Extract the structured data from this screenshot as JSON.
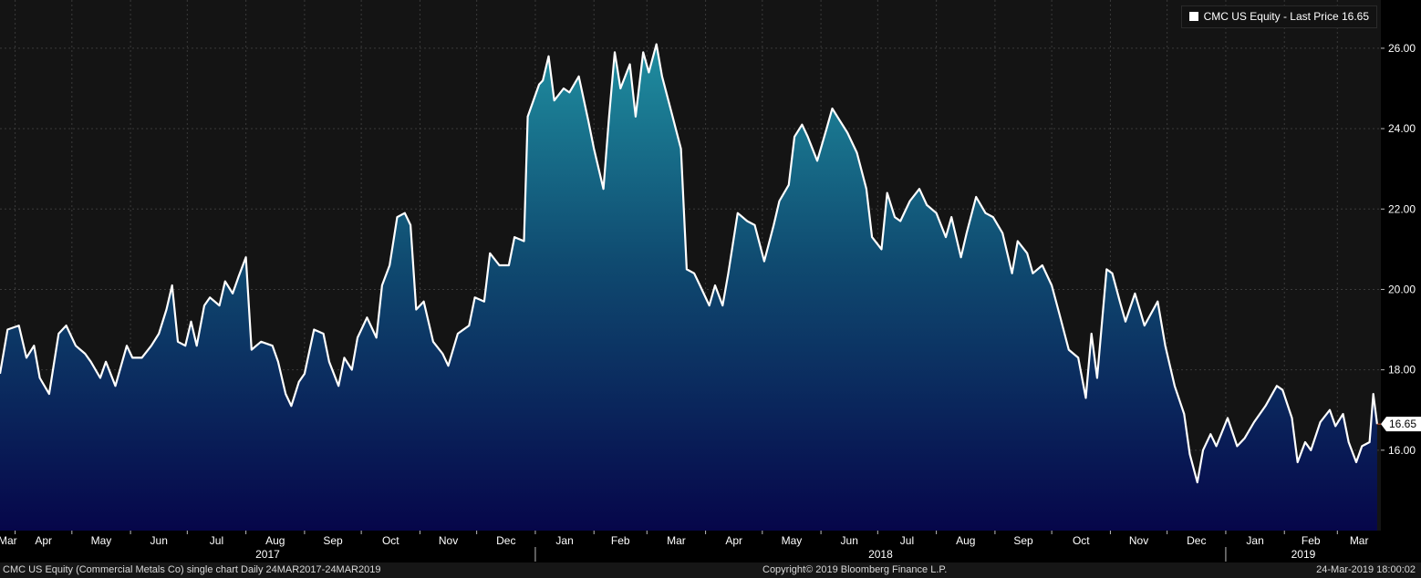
{
  "chart_data": {
    "type": "area",
    "ticker": "CMC US Equity",
    "legend_label": "CMC US Equity - Last Price 16.65",
    "last_price": 16.65,
    "last_price_label": "16.65",
    "y_ticks": [
      "16.00",
      "18.00",
      "20.00",
      "22.00",
      "24.00",
      "26.00"
    ],
    "ylim": [
      14.0,
      27.2
    ],
    "grid": true,
    "legend_position": "top-right",
    "x_range": [
      "2017-03-24",
      "2019-03-24"
    ],
    "month_labels": [
      "Mar",
      "Apr",
      "May",
      "Jun",
      "Jul",
      "Aug",
      "Sep",
      "Oct",
      "Nov",
      "Dec",
      "Jan",
      "Feb",
      "Mar",
      "Apr",
      "May",
      "Jun",
      "Jul",
      "Aug",
      "Sep",
      "Oct",
      "Nov",
      "Dec",
      "Jan",
      "Feb",
      "Mar"
    ],
    "year_labels": [
      "2017",
      "2018",
      "2019"
    ],
    "series": [
      {
        "values": [
          [
            "2017-03-24",
            17.9
          ],
          [
            "2017-03-28",
            19.0
          ],
          [
            "2017-04-03",
            19.1
          ],
          [
            "2017-04-07",
            18.3
          ],
          [
            "2017-04-11",
            18.6
          ],
          [
            "2017-04-14",
            17.8
          ],
          [
            "2017-04-19",
            17.4
          ],
          [
            "2017-04-24",
            18.9
          ],
          [
            "2017-04-28",
            19.1
          ],
          [
            "2017-05-03",
            18.6
          ],
          [
            "2017-05-08",
            18.4
          ],
          [
            "2017-05-11",
            18.2
          ],
          [
            "2017-05-16",
            17.8
          ],
          [
            "2017-05-19",
            18.2
          ],
          [
            "2017-05-24",
            17.6
          ],
          [
            "2017-05-30",
            18.6
          ],
          [
            "2017-06-02",
            18.3
          ],
          [
            "2017-06-07",
            18.3
          ],
          [
            "2017-06-12",
            18.6
          ],
          [
            "2017-06-16",
            18.9
          ],
          [
            "2017-06-20",
            19.5
          ],
          [
            "2017-06-23",
            20.1
          ],
          [
            "2017-06-26",
            18.7
          ],
          [
            "2017-06-30",
            18.6
          ],
          [
            "2017-07-03",
            19.2
          ],
          [
            "2017-07-06",
            18.6
          ],
          [
            "2017-07-10",
            19.6
          ],
          [
            "2017-07-13",
            19.8
          ],
          [
            "2017-07-18",
            19.6
          ],
          [
            "2017-07-21",
            20.2
          ],
          [
            "2017-07-25",
            19.9
          ],
          [
            "2017-07-28",
            20.3
          ],
          [
            "2017-08-01",
            20.8
          ],
          [
            "2017-08-04",
            18.5
          ],
          [
            "2017-08-09",
            18.7
          ],
          [
            "2017-08-15",
            18.6
          ],
          [
            "2017-08-18",
            18.2
          ],
          [
            "2017-08-22",
            17.4
          ],
          [
            "2017-08-25",
            17.1
          ],
          [
            "2017-08-29",
            17.7
          ],
          [
            "2017-09-01",
            17.9
          ],
          [
            "2017-09-06",
            19.0
          ],
          [
            "2017-09-11",
            18.9
          ],
          [
            "2017-09-14",
            18.2
          ],
          [
            "2017-09-19",
            17.6
          ],
          [
            "2017-09-22",
            18.3
          ],
          [
            "2017-09-26",
            18.0
          ],
          [
            "2017-09-29",
            18.8
          ],
          [
            "2017-10-04",
            19.3
          ],
          [
            "2017-10-09",
            18.8
          ],
          [
            "2017-10-12",
            20.1
          ],
          [
            "2017-10-16",
            20.6
          ],
          [
            "2017-10-20",
            21.8
          ],
          [
            "2017-10-24",
            21.9
          ],
          [
            "2017-10-27",
            21.6
          ],
          [
            "2017-10-30",
            19.5
          ],
          [
            "2017-11-03",
            19.7
          ],
          [
            "2017-11-08",
            18.7
          ],
          [
            "2017-11-13",
            18.4
          ],
          [
            "2017-11-16",
            18.1
          ],
          [
            "2017-11-21",
            18.9
          ],
          [
            "2017-11-27",
            19.1
          ],
          [
            "2017-11-30",
            19.8
          ],
          [
            "2017-12-05",
            19.7
          ],
          [
            "2017-12-08",
            20.9
          ],
          [
            "2017-12-13",
            20.6
          ],
          [
            "2017-12-18",
            20.6
          ],
          [
            "2017-12-21",
            21.3
          ],
          [
            "2017-12-26",
            21.2
          ],
          [
            "2017-12-28",
            24.3
          ],
          [
            "2018-01-03",
            25.1
          ],
          [
            "2018-01-05",
            25.2
          ],
          [
            "2018-01-08",
            25.8
          ],
          [
            "2018-01-11",
            24.7
          ],
          [
            "2018-01-16",
            25.0
          ],
          [
            "2018-01-19",
            24.9
          ],
          [
            "2018-01-24",
            25.3
          ],
          [
            "2018-01-29",
            24.2
          ],
          [
            "2018-02-01",
            23.5
          ],
          [
            "2018-02-06",
            22.5
          ],
          [
            "2018-02-09",
            24.3
          ],
          [
            "2018-02-12",
            25.9
          ],
          [
            "2018-02-15",
            25.0
          ],
          [
            "2018-02-20",
            25.6
          ],
          [
            "2018-02-23",
            24.3
          ],
          [
            "2018-02-27",
            25.9
          ],
          [
            "2018-03-02",
            25.4
          ],
          [
            "2018-03-06",
            26.1
          ],
          [
            "2018-03-09",
            25.3
          ],
          [
            "2018-03-14",
            24.4
          ],
          [
            "2018-03-19",
            23.5
          ],
          [
            "2018-03-22",
            20.5
          ],
          [
            "2018-03-26",
            20.4
          ],
          [
            "2018-03-29",
            20.1
          ],
          [
            "2018-04-03",
            19.6
          ],
          [
            "2018-04-06",
            20.1
          ],
          [
            "2018-04-10",
            19.6
          ],
          [
            "2018-04-13",
            20.4
          ],
          [
            "2018-04-18",
            21.9
          ],
          [
            "2018-04-23",
            21.7
          ],
          [
            "2018-04-27",
            21.6
          ],
          [
            "2018-05-02",
            20.7
          ],
          [
            "2018-05-07",
            21.6
          ],
          [
            "2018-05-10",
            22.2
          ],
          [
            "2018-05-15",
            22.6
          ],
          [
            "2018-05-18",
            23.8
          ],
          [
            "2018-05-22",
            24.1
          ],
          [
            "2018-05-25",
            23.8
          ],
          [
            "2018-05-30",
            23.2
          ],
          [
            "2018-06-04",
            24.0
          ],
          [
            "2018-06-07",
            24.5
          ],
          [
            "2018-06-11",
            24.2
          ],
          [
            "2018-06-15",
            23.9
          ],
          [
            "2018-06-20",
            23.4
          ],
          [
            "2018-06-25",
            22.5
          ],
          [
            "2018-06-28",
            21.3
          ],
          [
            "2018-07-03",
            21.0
          ],
          [
            "2018-07-06",
            22.4
          ],
          [
            "2018-07-10",
            21.8
          ],
          [
            "2018-07-13",
            21.7
          ],
          [
            "2018-07-18",
            22.2
          ],
          [
            "2018-07-23",
            22.5
          ],
          [
            "2018-07-27",
            22.1
          ],
          [
            "2018-08-01",
            21.9
          ],
          [
            "2018-08-06",
            21.3
          ],
          [
            "2018-08-09",
            21.8
          ],
          [
            "2018-08-14",
            20.8
          ],
          [
            "2018-08-17",
            21.4
          ],
          [
            "2018-08-22",
            22.3
          ],
          [
            "2018-08-27",
            21.9
          ],
          [
            "2018-08-31",
            21.8
          ],
          [
            "2018-09-05",
            21.4
          ],
          [
            "2018-09-10",
            20.4
          ],
          [
            "2018-09-13",
            21.2
          ],
          [
            "2018-09-18",
            20.9
          ],
          [
            "2018-09-21",
            20.4
          ],
          [
            "2018-09-26",
            20.6
          ],
          [
            "2018-10-01",
            20.1
          ],
          [
            "2018-10-05",
            19.4
          ],
          [
            "2018-10-10",
            18.5
          ],
          [
            "2018-10-15",
            18.3
          ],
          [
            "2018-10-19",
            17.3
          ],
          [
            "2018-10-22",
            18.9
          ],
          [
            "2018-10-25",
            17.8
          ],
          [
            "2018-10-30",
            20.5
          ],
          [
            "2018-11-02",
            20.4
          ],
          [
            "2018-11-06",
            19.7
          ],
          [
            "2018-11-09",
            19.2
          ],
          [
            "2018-11-14",
            19.9
          ],
          [
            "2018-11-19",
            19.1
          ],
          [
            "2018-11-26",
            19.7
          ],
          [
            "2018-11-30",
            18.6
          ],
          [
            "2018-12-05",
            17.6
          ],
          [
            "2018-12-10",
            16.9
          ],
          [
            "2018-12-13",
            15.9
          ],
          [
            "2018-12-17",
            15.2
          ],
          [
            "2018-12-20",
            16.0
          ],
          [
            "2018-12-24",
            16.4
          ],
          [
            "2018-12-27",
            16.1
          ],
          [
            "2019-01-02",
            16.8
          ],
          [
            "2019-01-07",
            16.1
          ],
          [
            "2019-01-11",
            16.3
          ],
          [
            "2019-01-16",
            16.7
          ],
          [
            "2019-01-22",
            17.1
          ],
          [
            "2019-01-28",
            17.6
          ],
          [
            "2019-01-31",
            17.5
          ],
          [
            "2019-02-05",
            16.8
          ],
          [
            "2019-02-08",
            15.7
          ],
          [
            "2019-02-12",
            16.2
          ],
          [
            "2019-02-15",
            16.0
          ],
          [
            "2019-02-20",
            16.7
          ],
          [
            "2019-02-25",
            17.0
          ],
          [
            "2019-02-28",
            16.6
          ],
          [
            "2019-03-04",
            16.9
          ],
          [
            "2019-03-07",
            16.2
          ],
          [
            "2019-03-11",
            15.7
          ],
          [
            "2019-03-14",
            16.1
          ],
          [
            "2019-03-18",
            16.2
          ],
          [
            "2019-03-20",
            17.4
          ],
          [
            "2019-03-22",
            16.65
          ]
        ]
      }
    ]
  },
  "footer": {
    "left": "CMC US Equity (Commercial Metals Co) single chart  Daily 24MAR2017-24MAR2019",
    "center": "Copyright© 2019 Bloomberg Finance L.P.",
    "right": "24-Mar-2019 18:00:02"
  },
  "colors": {
    "background": "#000000",
    "plot_background": "#141414",
    "grid": "#3a3a3a",
    "line": "#ffffff",
    "fill_top": "#1f8ea0",
    "fill_bottom": "#06064a",
    "last_price_marker": "#d2542e"
  }
}
